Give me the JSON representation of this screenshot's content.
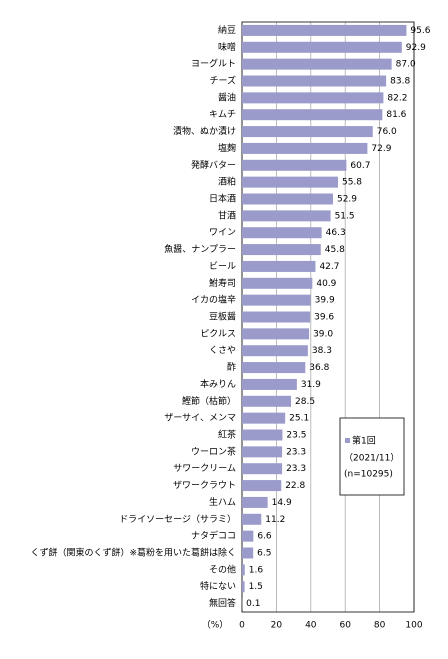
{
  "chart_data": {
    "type": "barh",
    "x_label": "（%）",
    "categories": [
      "納豆",
      "味噌",
      "ヨーグルト",
      "チーズ",
      "醤油",
      "キムチ",
      "漬物、ぬか漬け",
      "塩麹",
      "発酵バター",
      "酒粕",
      "日本酒",
      "甘酒",
      "ワイン",
      "魚醤、ナンプラー",
      "ビール",
      "鮒寿司",
      "イカの塩辛",
      "豆板醤",
      "ピクルス",
      "くさや",
      "酢",
      "本みりん",
      "鰹節（枯節）",
      "ザーサイ、メンマ",
      "紅茶",
      "ウーロン茶",
      "サワークリーム",
      "ザワークラウト",
      "生ハム",
      "ドライソーセージ（サラミ）",
      "ナタデココ",
      "くず餅（関東のくず餅）※葛粉を用いた葛餅は除く",
      "その他",
      "特にない",
      "無回答"
    ],
    "series": [
      {
        "name": "第1回",
        "color": "#9b9bcb",
        "values": [
          95.6,
          92.9,
          87.0,
          83.8,
          82.2,
          81.6,
          76.0,
          72.9,
          60.7,
          55.8,
          52.9,
          51.5,
          46.3,
          45.8,
          42.7,
          40.9,
          39.9,
          39.6,
          39.0,
          38.3,
          36.8,
          31.9,
          28.5,
          25.1,
          23.5,
          23.3,
          23.3,
          22.8,
          14.9,
          11.2,
          6.6,
          6.5,
          1.6,
          1.5,
          0.1
        ],
        "value_labels": [
          "95.6",
          "92.9",
          "87.0",
          "83.8",
          "82.2",
          "81.6",
          "76.0",
          "72.9",
          "60.7",
          "55.8",
          "52.9",
          "51.5",
          "46.3",
          "45.8",
          "42.7",
          "40.9",
          "39.9",
          "39.6",
          "39.0",
          "38.3",
          "36.8",
          "31.9",
          "28.5",
          "25.1",
          "23.5",
          "23.3",
          "23.3",
          "22.8",
          "14.9",
          "11.2",
          "6.6",
          "6.5",
          "1.6",
          "1.5",
          "0.1"
        ]
      }
    ],
    "legend_note": [
      "（2021/11）",
      "(n=10295)"
    ],
    "xlim": [
      0,
      100
    ],
    "xticks": [
      0,
      20,
      40,
      60,
      80,
      100
    ],
    "grid": true
  }
}
